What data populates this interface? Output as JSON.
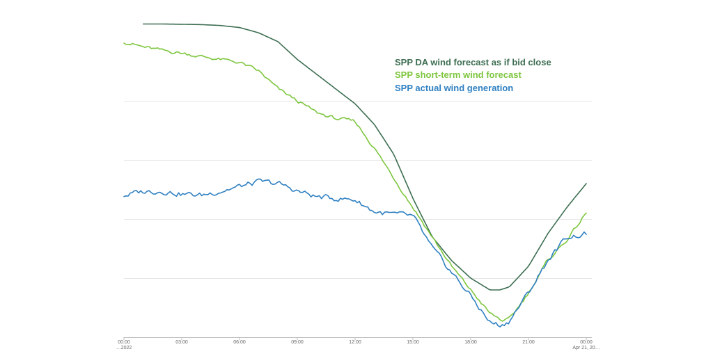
{
  "chart_data": {
    "type": "line",
    "title": "",
    "xlabel": "",
    "ylabel": "",
    "grid": true,
    "legend_position": "top-right",
    "x_ticks": [
      {
        "hour": 0,
        "label": "00:00",
        "sublabel": "…2022"
      },
      {
        "hour": 3,
        "label": "03:00"
      },
      {
        "hour": 6,
        "label": "06:00"
      },
      {
        "hour": 9,
        "label": "09:00"
      },
      {
        "hour": 12,
        "label": "12:00"
      },
      {
        "hour": 15,
        "label": "15:00"
      },
      {
        "hour": 18,
        "label": "18:00"
      },
      {
        "hour": 21,
        "label": "21:00"
      },
      {
        "hour": 24,
        "label": "00:00",
        "sublabel": "Apr 21, 20…"
      }
    ],
    "xlim": [
      0,
      24
    ],
    "ylim": [
      0,
      100
    ],
    "y_gridlines": [
      20,
      40,
      60,
      80
    ],
    "series": [
      {
        "name": "SPP DA wind forecast as if bid close",
        "color": "#3d6e52",
        "noise": 0,
        "points": [
          [
            1,
            106
          ],
          [
            2,
            106
          ],
          [
            3,
            105.9
          ],
          [
            4,
            105.8
          ],
          [
            5,
            105.5
          ],
          [
            6,
            104.8
          ],
          [
            7,
            103
          ],
          [
            8,
            100
          ],
          [
            9,
            94
          ],
          [
            10,
            89
          ],
          [
            11,
            84
          ],
          [
            12,
            79
          ],
          [
            13,
            72
          ],
          [
            14,
            62
          ],
          [
            15,
            47
          ],
          [
            16,
            34
          ],
          [
            17,
            26
          ],
          [
            18,
            20
          ],
          [
            19,
            16
          ],
          [
            19.5,
            16
          ],
          [
            20,
            17
          ],
          [
            21,
            24
          ],
          [
            22,
            35
          ],
          [
            23,
            44
          ],
          [
            24,
            52
          ]
        ]
      },
      {
        "name": "SPP short-term wind forecast",
        "color": "#7dc63e",
        "noise": 0.5,
        "points": [
          [
            0,
            100
          ],
          [
            1,
            98.2
          ],
          [
            2,
            97
          ],
          [
            3,
            96.2
          ],
          [
            4,
            95
          ],
          [
            5,
            94
          ],
          [
            6,
            93
          ],
          [
            7,
            90
          ],
          [
            8,
            84
          ],
          [
            9,
            80
          ],
          [
            10,
            76
          ],
          [
            11,
            74
          ],
          [
            12,
            73
          ],
          [
            13,
            64
          ],
          [
            14,
            54
          ],
          [
            15,
            44
          ],
          [
            16,
            34
          ],
          [
            17,
            24
          ],
          [
            18,
            16
          ],
          [
            19,
            8
          ],
          [
            19.7,
            5.5
          ],
          [
            20,
            6
          ],
          [
            21,
            15
          ],
          [
            22,
            26
          ],
          [
            23,
            33
          ],
          [
            24,
            42
          ]
        ]
      },
      {
        "name": "SPP actual wind generation",
        "color": "#2f80c2",
        "noise": 0.8,
        "points": [
          [
            0,
            48
          ],
          [
            1,
            49.3
          ],
          [
            2,
            49.5
          ],
          [
            3,
            48.5
          ],
          [
            4,
            48
          ],
          [
            5,
            49.5
          ],
          [
            6,
            51
          ],
          [
            7,
            52.5
          ],
          [
            8,
            52
          ],
          [
            9,
            49.5
          ],
          [
            10,
            47.5
          ],
          [
            11,
            47
          ],
          [
            12,
            46.5
          ],
          [
            13,
            42.5
          ],
          [
            14,
            41.5
          ],
          [
            15,
            41
          ],
          [
            16,
            30
          ],
          [
            17,
            22
          ],
          [
            18,
            14
          ],
          [
            19,
            5
          ],
          [
            19.6,
            4
          ],
          [
            20,
            5.5
          ],
          [
            21,
            15
          ],
          [
            22,
            26
          ],
          [
            23,
            34
          ],
          [
            24,
            35
          ]
        ]
      }
    ]
  }
}
